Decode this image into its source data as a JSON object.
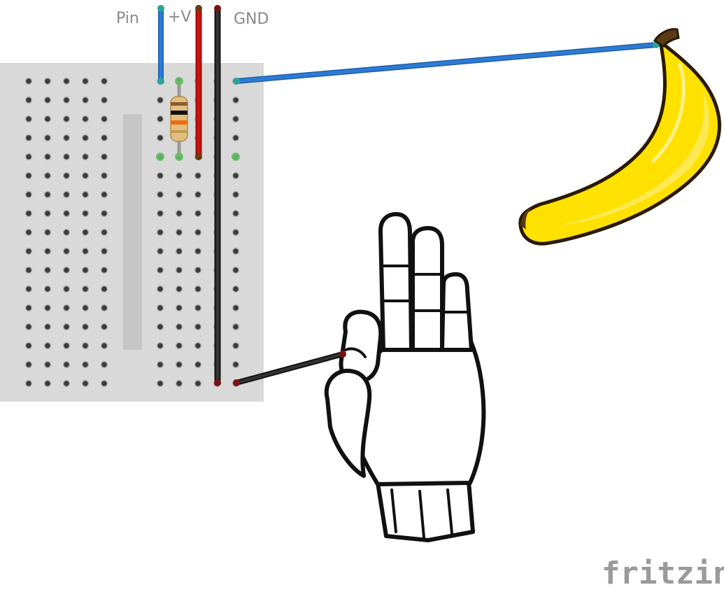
{
  "labels": {
    "pin": "Pin",
    "plus_v": "+V",
    "gnd": "GND"
  },
  "brand": {
    "name": "fritzing"
  },
  "colors": {
    "breadboard": "#d9d9d9",
    "hole": "#3a3a3a",
    "wire_blue": "#2e7bd3",
    "wire_red": "#c8120c",
    "wire_black": "#222222",
    "banana_yellow": "#ffe100",
    "banana_outline": "#2a1a05"
  },
  "components": {
    "resistor_bands": [
      "#8b5a2b",
      "#111111",
      "#f06a10",
      "#c49a52"
    ]
  }
}
